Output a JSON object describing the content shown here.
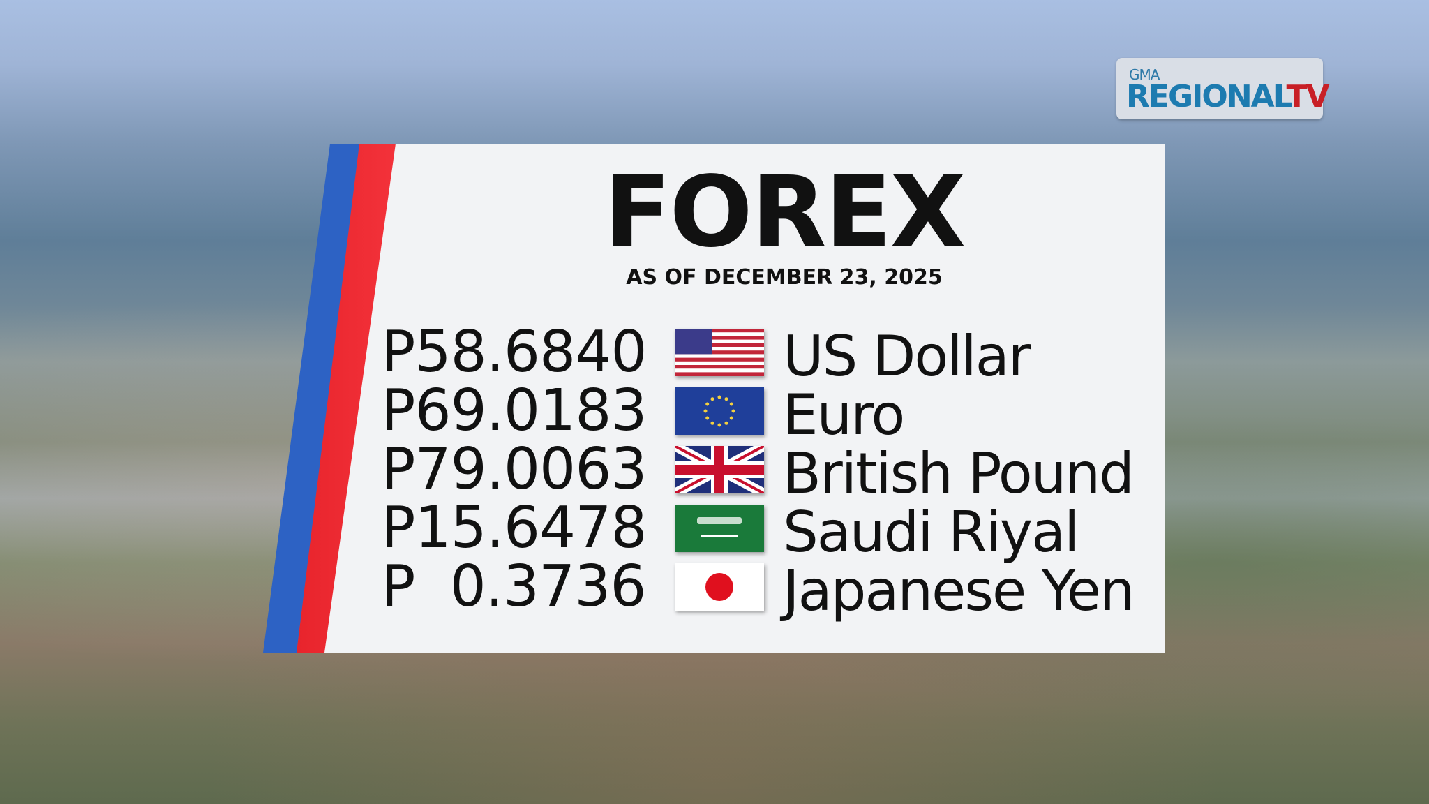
{
  "logo": {
    "network": "GMA",
    "brand_main": "REGIONAL",
    "brand_accent": "TV"
  },
  "title": "FOREX",
  "date": "AS OF DECEMBER 23, 2025",
  "rates": [
    {
      "price": "P58.6840",
      "flag": "us-flag-icon",
      "currency": "US Dollar"
    },
    {
      "price": "P69.0183",
      "flag": "eu-flag-icon",
      "currency": "Euro"
    },
    {
      "price": "P79.0063",
      "flag": "uk-flag-icon",
      "currency": "British Pound"
    },
    {
      "price": "P15.6478",
      "flag": "saudi-flag-icon",
      "currency": "Saudi Riyal"
    },
    {
      "price": "P  0.3736",
      "flag": "japan-flag-icon",
      "currency": "Japanese Yen"
    }
  ],
  "colors": {
    "stripe_blue": "#2d62c4",
    "stripe_red": "#e8242c",
    "logo_blue": "#1d7bb0",
    "logo_red": "#c81f26"
  }
}
